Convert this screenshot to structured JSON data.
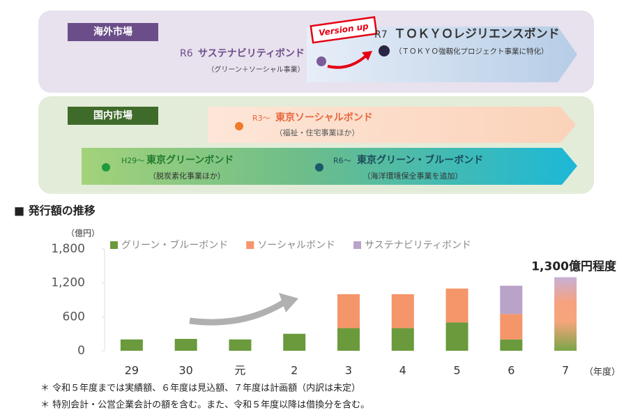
{
  "overseas": {
    "label": "海外市場",
    "badge": "Version up",
    "from": {
      "era": "R6",
      "name": "サステナビリティボンド",
      "note": "（グリーン＋ソーシャル事業）"
    },
    "to": {
      "era": "R7",
      "name": "ＴＯＫＹＯレジリエンスボンド",
      "note": "（ＴＯＫＹＯ強靱化プロジェクト事業に特化）"
    }
  },
  "domestic": {
    "label": "国内市場",
    "items": [
      {
        "era": "R3～",
        "name": "東京ソーシャルボンド",
        "note": "（福祉・住宅事業ほか）"
      },
      {
        "era": "H29～",
        "name": "東京グリーンボンド",
        "note": "（脱炭素化事業ほか）"
      },
      {
        "era": "R6～",
        "name": "東京グリーン・ブルーボンド",
        "note": "（海洋環境保全事業を追加）"
      }
    ]
  },
  "chart_data": {
    "type": "bar",
    "stacked": true,
    "title": "■ 発行額の推移",
    "y_unit": "（億円）",
    "x_unit": "（年度）",
    "categories": [
      "29",
      "30",
      "元",
      "2",
      "3",
      "4",
      "5",
      "6",
      "7"
    ],
    "series": [
      {
        "name": "グリーン・ブルーボンド",
        "color": "#6a9a3c",
        "values": [
          200,
          210,
          200,
          300,
          400,
          400,
          500,
          200,
          null
        ]
      },
      {
        "name": "ソーシャルボンド",
        "color": "#f4956a",
        "values": [
          null,
          null,
          null,
          null,
          600,
          600,
          600,
          450,
          null
        ]
      },
      {
        "name": "サステナビリティボンド",
        "color": "#b9a3c9",
        "values": [
          null,
          null,
          null,
          null,
          null,
          null,
          null,
          500,
          null
        ]
      }
    ],
    "annotation": {
      "text": "1,300億円程度",
      "value": 1300
    },
    "ylim": [
      0,
      1800
    ],
    "yticks": [
      0,
      600,
      {
        "value": 1200,
        "label": "1,200"
      },
      {
        "value": 1800,
        "label": "1,800"
      }
    ],
    "notes": [
      "＊ 令和５年度までは実績額、６年度は見込額、７年度は計画額（内訳は未定）",
      "＊ 特別会計・公営企業会計の額を含む。また、令和５年度以降は借換分を含む。"
    ]
  }
}
